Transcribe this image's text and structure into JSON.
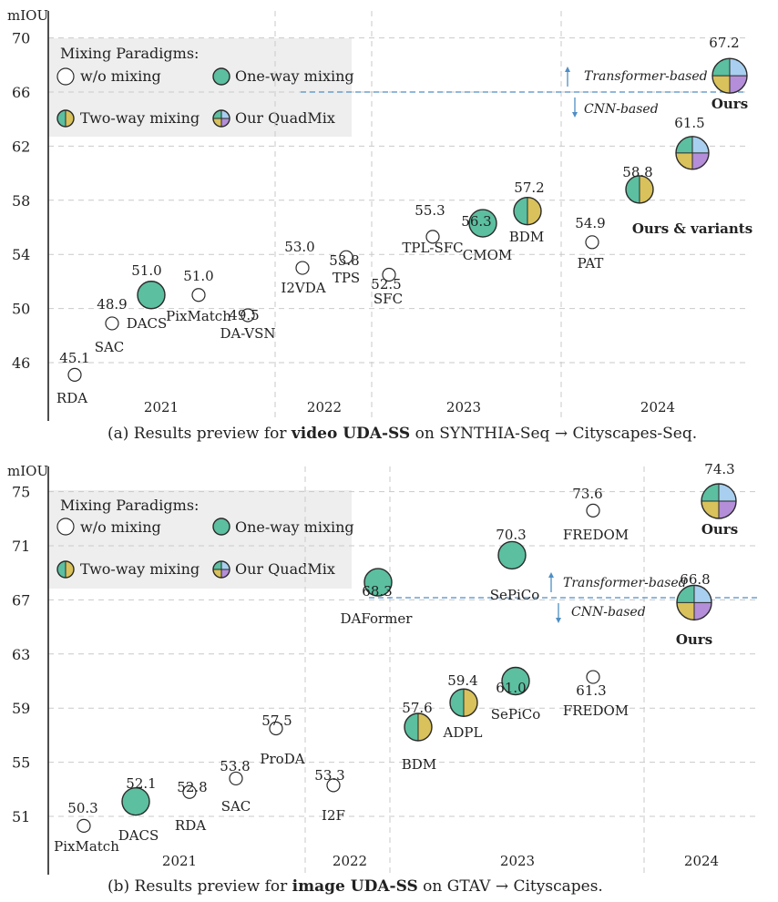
{
  "colors": {
    "one_way": "#5bbfa0",
    "quad_teal": "#5bbfa0",
    "quad_blue": "#a8cfef",
    "quad_gold": "#d9c15b",
    "quad_purple": "#b48ed8",
    "separator": "#4f8ec4",
    "legend_bg": "#eeeeee"
  },
  "icons": {
    "w/o mixing": "hollow-circle-icon",
    "One-way mixing": "teal-circle-icon",
    "Two-way mixing": "half-teal-half-gold-circle-icon",
    "Our QuadMix": "four-quadrant-circle-icon"
  },
  "chart_data": [
    {
      "type": "scatter",
      "ylabel": "mIOU",
      "ylim": [
        44,
        71
      ],
      "yticks": [
        46,
        50,
        54,
        58,
        62,
        66,
        70
      ],
      "grid": true,
      "legend": {
        "title": "Mixing Paradigms:",
        "position": "top-left",
        "items": [
          "w/o mixing",
          "One-way mixing",
          "Two-way mixing",
          "Our QuadMix"
        ]
      },
      "year_groups": [
        "2021",
        "2022",
        "2023",
        "2024"
      ],
      "separator": {
        "y": 66,
        "upper_label": "Transformer-based",
        "lower_label": "CNN-based"
      },
      "group_annotation": "Ours & variants",
      "caption": {
        "prefix": "(a) Results preview for ",
        "bold": "video UDA-SS",
        "suffix": " on SYNTHIA-Seq → Cityscapes-Seq."
      },
      "points": [
        {
          "name": "RDA",
          "year": "2021",
          "value": 45.1,
          "value_label": "45.1",
          "mixing": "w/o mixing"
        },
        {
          "name": "SAC",
          "year": "2021",
          "value": 48.9,
          "value_label": "48.9",
          "mixing": "w/o mixing"
        },
        {
          "name": "DACS",
          "year": "2021",
          "value": 51.0,
          "value_label": "51.0",
          "mixing": "One-way mixing"
        },
        {
          "name": "PixMatch",
          "year": "2021",
          "value": 51.0,
          "value_label": "51.0",
          "mixing": "w/o mixing"
        },
        {
          "name": "DA-VSN",
          "year": "2021",
          "value": 49.5,
          "value_label": "49.5",
          "mixing": "w/o mixing"
        },
        {
          "name": "I2VDA",
          "year": "2022",
          "value": 53.0,
          "value_label": "53.0",
          "mixing": "w/o mixing"
        },
        {
          "name": "TPS",
          "year": "2022",
          "value": 53.8,
          "value_label": "53.8",
          "mixing": "w/o mixing"
        },
        {
          "name": "SFC",
          "year": "2023",
          "value": 52.5,
          "value_label": "52.5",
          "mixing": "w/o mixing"
        },
        {
          "name": "TPL-SFC",
          "year": "2023",
          "value": 55.3,
          "value_label": "55.3",
          "mixing": "w/o mixing"
        },
        {
          "name": "CMOM",
          "year": "2023",
          "value": 56.3,
          "value_label": "56.3",
          "mixing": "One-way mixing"
        },
        {
          "name": "BDM",
          "year": "2023",
          "value": 57.2,
          "value_label": "57.2",
          "mixing": "Two-way mixing"
        },
        {
          "name": "PAT",
          "year": "2024",
          "value": 54.9,
          "value_label": "54.9",
          "mixing": "w/o mixing"
        },
        {
          "name": "",
          "year": "2024",
          "value": 58.8,
          "value_label": "58.8",
          "mixing": "Two-way mixing"
        },
        {
          "name": "",
          "year": "2024",
          "value": 61.5,
          "value_label": "61.5",
          "mixing": "Our QuadMix"
        },
        {
          "name": "Ours",
          "year": "2024",
          "value": 67.2,
          "value_label": "67.2",
          "mixing": "Our QuadMix"
        }
      ]
    },
    {
      "type": "scatter",
      "ylabel": "mIOU",
      "ylim": [
        49,
        76
      ],
      "yticks": [
        51,
        55,
        59,
        63,
        67,
        71,
        75
      ],
      "grid": true,
      "legend": {
        "title": "Mixing Paradigms:",
        "position": "top-left",
        "items": [
          "w/o mixing",
          "One-way mixing",
          "Two-way mixing",
          "Our QuadMix"
        ]
      },
      "year_groups": [
        "2021",
        "2022",
        "2023",
        "2024"
      ],
      "separator": {
        "y": 67,
        "upper_label": "Transformer-based",
        "lower_label": "CNN-based"
      },
      "caption": {
        "prefix": "(b) Results preview for ",
        "bold": "image UDA-SS",
        "suffix": " on GTAV → Cityscapes."
      },
      "points": [
        {
          "name": "PixMatch",
          "year": "2021",
          "value": 50.3,
          "value_label": "50.3",
          "mixing": "w/o mixing"
        },
        {
          "name": "DACS",
          "year": "2021",
          "value": 52.1,
          "value_label": "52.1",
          "mixing": "One-way mixing"
        },
        {
          "name": "RDA",
          "year": "2021",
          "value": 52.8,
          "value_label": "52.8",
          "mixing": "w/o mixing"
        },
        {
          "name": "SAC",
          "year": "2021",
          "value": 53.8,
          "value_label": "53.8",
          "mixing": "w/o mixing"
        },
        {
          "name": "ProDA",
          "year": "2021",
          "value": 57.5,
          "value_label": "57.5",
          "mixing": "w/o mixing"
        },
        {
          "name": "I2F",
          "year": "2022",
          "value": 53.3,
          "value_label": "53.3",
          "mixing": "w/o mixing"
        },
        {
          "name": "DAFormer",
          "year": "2022",
          "value": 68.3,
          "value_label": "68.3",
          "mixing": "One-way mixing"
        },
        {
          "name": "BDM",
          "year": "2023",
          "value": 57.6,
          "value_label": "57.6",
          "mixing": "Two-way mixing"
        },
        {
          "name": "ADPL",
          "year": "2023",
          "value": 59.4,
          "value_label": "59.4",
          "mixing": "Two-way mixing"
        },
        {
          "name": "SePiCo",
          "year": "2023",
          "value": 61.0,
          "value_label": "61.0",
          "mixing": "One-way mixing"
        },
        {
          "name": "SePiCo",
          "year": "2023",
          "value": 70.3,
          "value_label": "70.3",
          "mixing": "One-way mixing"
        },
        {
          "name": "FREDOM",
          "year": "2023",
          "value": 61.3,
          "value_label": "61.3",
          "mixing": "w/o mixing"
        },
        {
          "name": "FREDOM",
          "year": "2023",
          "value": 73.6,
          "value_label": "73.6",
          "mixing": "w/o mixing"
        },
        {
          "name": "Ours",
          "year": "2024",
          "value": 66.8,
          "value_label": "66.8",
          "mixing": "Our QuadMix"
        },
        {
          "name": "Ours",
          "year": "2024",
          "value": 74.3,
          "value_label": "74.3",
          "mixing": "Our QuadMix"
        }
      ]
    }
  ]
}
